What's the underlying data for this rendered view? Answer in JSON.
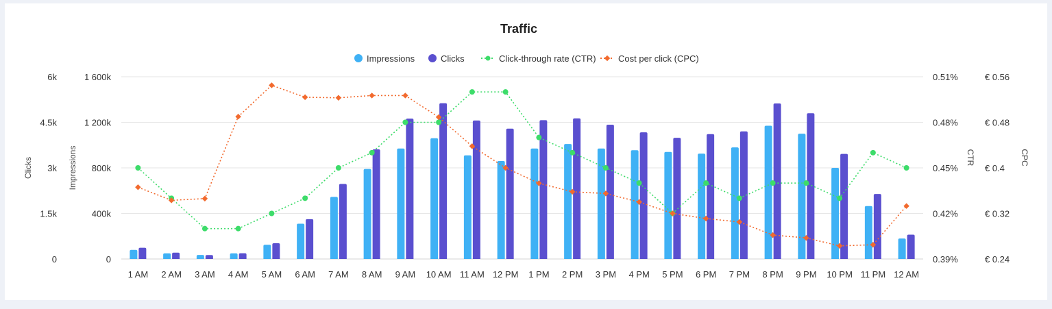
{
  "chart_data": {
    "type": "bar",
    "title": "Traffic",
    "categories": [
      "1 AM",
      "2 AM",
      "3 AM",
      "4 AM",
      "5 AM",
      "6 AM",
      "7 AM",
      "8 AM",
      "9 AM",
      "10 AM",
      "11 AM",
      "12 PM",
      "1 PM",
      "2 PM",
      "3 PM",
      "4 PM",
      "5 PM",
      "6 PM",
      "7 PM",
      "8 PM",
      "9 PM",
      "10 PM",
      "11 PM",
      "12 AM"
    ],
    "legend_position": "top-center",
    "grid": true,
    "axes": {
      "clicks": {
        "label": "Clicks",
        "side": "left",
        "ylim": [
          0,
          6000
        ],
        "ticks": [
          "0",
          "1.5k",
          "3k",
          "4.5k",
          "6k"
        ]
      },
      "impressions": {
        "label": "Impressions",
        "side": "left",
        "ylim": [
          0,
          1600000
        ],
        "ticks": [
          "0",
          "400k",
          "800k",
          "1 200k",
          "1 600k"
        ]
      },
      "ctr": {
        "label": "CTR",
        "side": "right",
        "ylim": [
          0.39,
          0.51
        ],
        "ticks": [
          "0.39%",
          "0.42%",
          "0.45%",
          "0.48%",
          "0.51%"
        ]
      },
      "cpc": {
        "label": "CPC",
        "side": "right",
        "ylim": [
          0.24,
          0.56
        ],
        "ticks": [
          "€ 0.24",
          "€ 0.32",
          "€ 0.4",
          "€ 0.48",
          "€ 0.56"
        ]
      }
    },
    "series": [
      {
        "name": "Impressions",
        "type": "bar",
        "axis": "impressions",
        "color": "#3fb1f5",
        "values": [
          80000,
          50000,
          35000,
          50000,
          125000,
          310000,
          545000,
          790000,
          970000,
          1060000,
          910000,
          860000,
          970000,
          1010000,
          970000,
          955000,
          940000,
          925000,
          980000,
          1170000,
          1100000,
          800000,
          465000,
          180000
        ]
      },
      {
        "name": "Clicks",
        "type": "bar",
        "axis": "clicks",
        "color": "#5a4fcf",
        "values": [
          370,
          210,
          130,
          190,
          520,
          1310,
          2470,
          3610,
          4620,
          5130,
          4560,
          4290,
          4570,
          4630,
          4420,
          4170,
          3990,
          4110,
          4200,
          5120,
          4800,
          3460,
          2140,
          800
        ]
      },
      {
        "name": "Click-through rate (CTR)",
        "type": "line",
        "axis": "ctr",
        "color": "#3ddc6a",
        "dash": "dotted",
        "values": [
          0.45,
          0.43,
          0.41,
          0.41,
          0.42,
          0.43,
          0.45,
          0.46,
          0.48,
          0.48,
          0.5,
          0.5,
          0.47,
          0.46,
          0.45,
          0.44,
          0.42,
          0.44,
          0.43,
          0.44,
          0.44,
          0.43,
          0.46,
          0.45
        ]
      },
      {
        "name": "Cost per click (CPC)",
        "type": "line",
        "axis": "cpc",
        "color": "#f26a2e",
        "dash": "dotted",
        "values": [
          0.366,
          0.343,
          0.346,
          0.49,
          0.545,
          0.524,
          0.523,
          0.527,
          0.527,
          0.489,
          0.438,
          0.4,
          0.373,
          0.358,
          0.355,
          0.34,
          0.32,
          0.311,
          0.305,
          0.282,
          0.277,
          0.263,
          0.265,
          0.333
        ]
      }
    ]
  }
}
